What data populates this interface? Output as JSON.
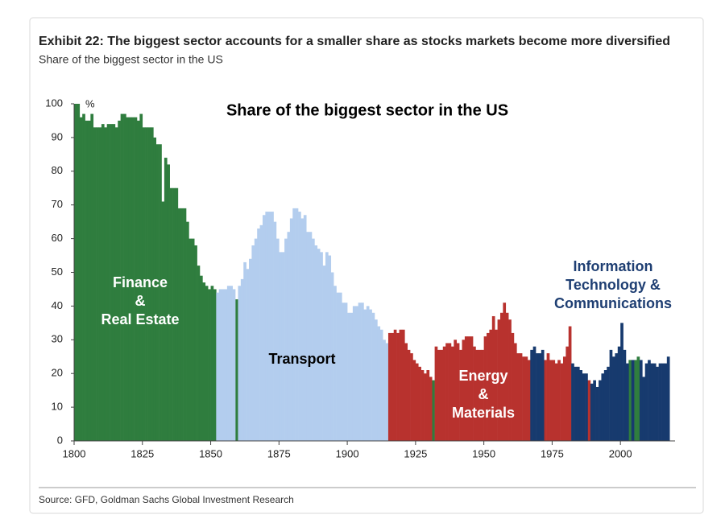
{
  "header": {
    "title": "Exhibit 22: The biggest sector accounts for a smaller share as stocks markets become more diversified",
    "subtitle": "Share of the biggest sector in the US"
  },
  "source": "Source: GFD, Goldman Sachs Global Investment Research",
  "chart_data": {
    "type": "bar",
    "title": "Share of the biggest sector in the US",
    "y_unit_label": "%",
    "xlim": [
      1800,
      2020
    ],
    "xticks": [
      1800,
      1825,
      1850,
      1875,
      1900,
      1925,
      1950,
      1975,
      2000
    ],
    "ylim": [
      0,
      100
    ],
    "yticks": [
      0,
      10,
      20,
      30,
      40,
      50,
      60,
      70,
      80,
      90,
      100
    ],
    "grid": false,
    "annotations": [
      {
        "lines": [
          "Finance",
          "&",
          "Real Estate"
        ],
        "color": "#ffffff"
      },
      {
        "lines": [
          "Transport"
        ],
        "color": "#000000"
      },
      {
        "lines": [
          "Energy",
          "&",
          "Materials"
        ],
        "color": "#ffffff"
      },
      {
        "lines": [
          "Information",
          "Technology &",
          "Communications"
        ],
        "color": "#1f3f73"
      }
    ],
    "series": [
      {
        "color": "#2f7d3e",
        "x": [
          1800,
          1801,
          1802,
          1803,
          1804,
          1805,
          1806,
          1807,
          1808,
          1809,
          1810,
          1811,
          1812,
          1813,
          1814,
          1815,
          1816,
          1817,
          1818,
          1819,
          1820,
          1821,
          1822,
          1823,
          1824,
          1825,
          1826,
          1827,
          1828,
          1829,
          1830,
          1831,
          1832,
          1833,
          1834,
          1835,
          1836,
          1837,
          1838,
          1839,
          1840,
          1841,
          1842,
          1843,
          1844,
          1845,
          1846,
          1847,
          1848,
          1849,
          1850,
          1851,
          1859,
          1931,
          2003,
          2005,
          2006
        ],
        "values": [
          100,
          100,
          96,
          97,
          95,
          95,
          97,
          93,
          93,
          93,
          94,
          93,
          94,
          94,
          94,
          93,
          95,
          97,
          97,
          96,
          96,
          96,
          96,
          95,
          97,
          93,
          93,
          93,
          93,
          90,
          88,
          88,
          71,
          84,
          82,
          75,
          75,
          75,
          69,
          69,
          69,
          65,
          60,
          60,
          58,
          52,
          49,
          47,
          46,
          45,
          46,
          45,
          42,
          18,
          24,
          24,
          25
        ]
      },
      {
        "color": "#b3cdee",
        "x": [
          1852,
          1853,
          1854,
          1855,
          1856,
          1857,
          1858,
          1860,
          1861,
          1862,
          1863,
          1864,
          1865,
          1866,
          1867,
          1868,
          1869,
          1870,
          1871,
          1872,
          1873,
          1874,
          1875,
          1876,
          1877,
          1878,
          1879,
          1880,
          1881,
          1882,
          1883,
          1884,
          1885,
          1886,
          1887,
          1888,
          1889,
          1890,
          1891,
          1892,
          1893,
          1894,
          1895,
          1896,
          1897,
          1898,
          1899,
          1900,
          1901,
          1902,
          1903,
          1904,
          1905,
          1906,
          1907,
          1908,
          1909,
          1910,
          1911,
          1912,
          1913,
          1914
        ],
        "values": [
          44,
          45,
          45,
          45,
          46,
          46,
          45,
          46,
          48,
          53,
          51,
          54,
          58,
          60,
          63,
          64,
          67,
          68,
          68,
          68,
          65,
          60,
          56,
          56,
          60,
          62,
          66,
          69,
          69,
          68,
          66,
          67,
          62,
          62,
          60,
          58,
          57,
          56,
          52,
          56,
          55,
          50,
          46,
          44,
          44,
          41,
          41,
          38,
          38,
          40,
          40,
          41,
          41,
          39,
          40,
          39,
          38,
          36,
          34,
          33,
          30,
          29
        ]
      },
      {
        "color": "#b8322e",
        "x": [
          1915,
          1916,
          1917,
          1918,
          1919,
          1920,
          1921,
          1922,
          1923,
          1924,
          1925,
          1926,
          1927,
          1928,
          1929,
          1930,
          1932,
          1933,
          1934,
          1935,
          1936,
          1937,
          1938,
          1939,
          1940,
          1941,
          1942,
          1943,
          1944,
          1945,
          1946,
          1947,
          1948,
          1949,
          1950,
          1951,
          1952,
          1953,
          1954,
          1955,
          1956,
          1957,
          1958,
          1959,
          1960,
          1961,
          1962,
          1963,
          1964,
          1965,
          1966,
          1972,
          1973,
          1974,
          1975,
          1976,
          1977,
          1978,
          1979,
          1980,
          1981,
          1988
        ],
        "values": [
          32,
          32,
          33,
          32,
          33,
          33,
          29,
          27,
          26,
          24,
          23,
          22,
          21,
          20,
          21,
          19,
          28,
          27,
          27,
          28,
          29,
          29,
          28,
          30,
          29,
          27,
          30,
          31,
          31,
          31,
          28,
          27,
          27,
          27,
          31,
          32,
          33,
          37,
          33,
          36,
          38,
          41,
          38,
          36,
          32,
          29,
          26,
          26,
          25,
          25,
          24,
          24,
          26,
          24,
          24,
          23,
          24,
          23,
          25,
          28,
          34,
          18
        ]
      },
      {
        "color": "#173a6e",
        "x": [
          1967,
          1968,
          1969,
          1970,
          1971,
          1982,
          1983,
          1984,
          1985,
          1986,
          1987,
          1989,
          1990,
          1991,
          1992,
          1993,
          1994,
          1995,
          1996,
          1997,
          1998,
          1999,
          2000,
          2001,
          2002,
          2004,
          2007,
          2008,
          2009,
          2010,
          2011,
          2012,
          2013,
          2014,
          2015,
          2016,
          2017
        ],
        "values": [
          27,
          28,
          26,
          26,
          27,
          23,
          22,
          22,
          21,
          20,
          20,
          17,
          18,
          16,
          18,
          20,
          21,
          22,
          27,
          25,
          26,
          28,
          35,
          27,
          23,
          24,
          24,
          19,
          23,
          24,
          23,
          23,
          22,
          23,
          23,
          23,
          25
        ]
      }
    ]
  }
}
